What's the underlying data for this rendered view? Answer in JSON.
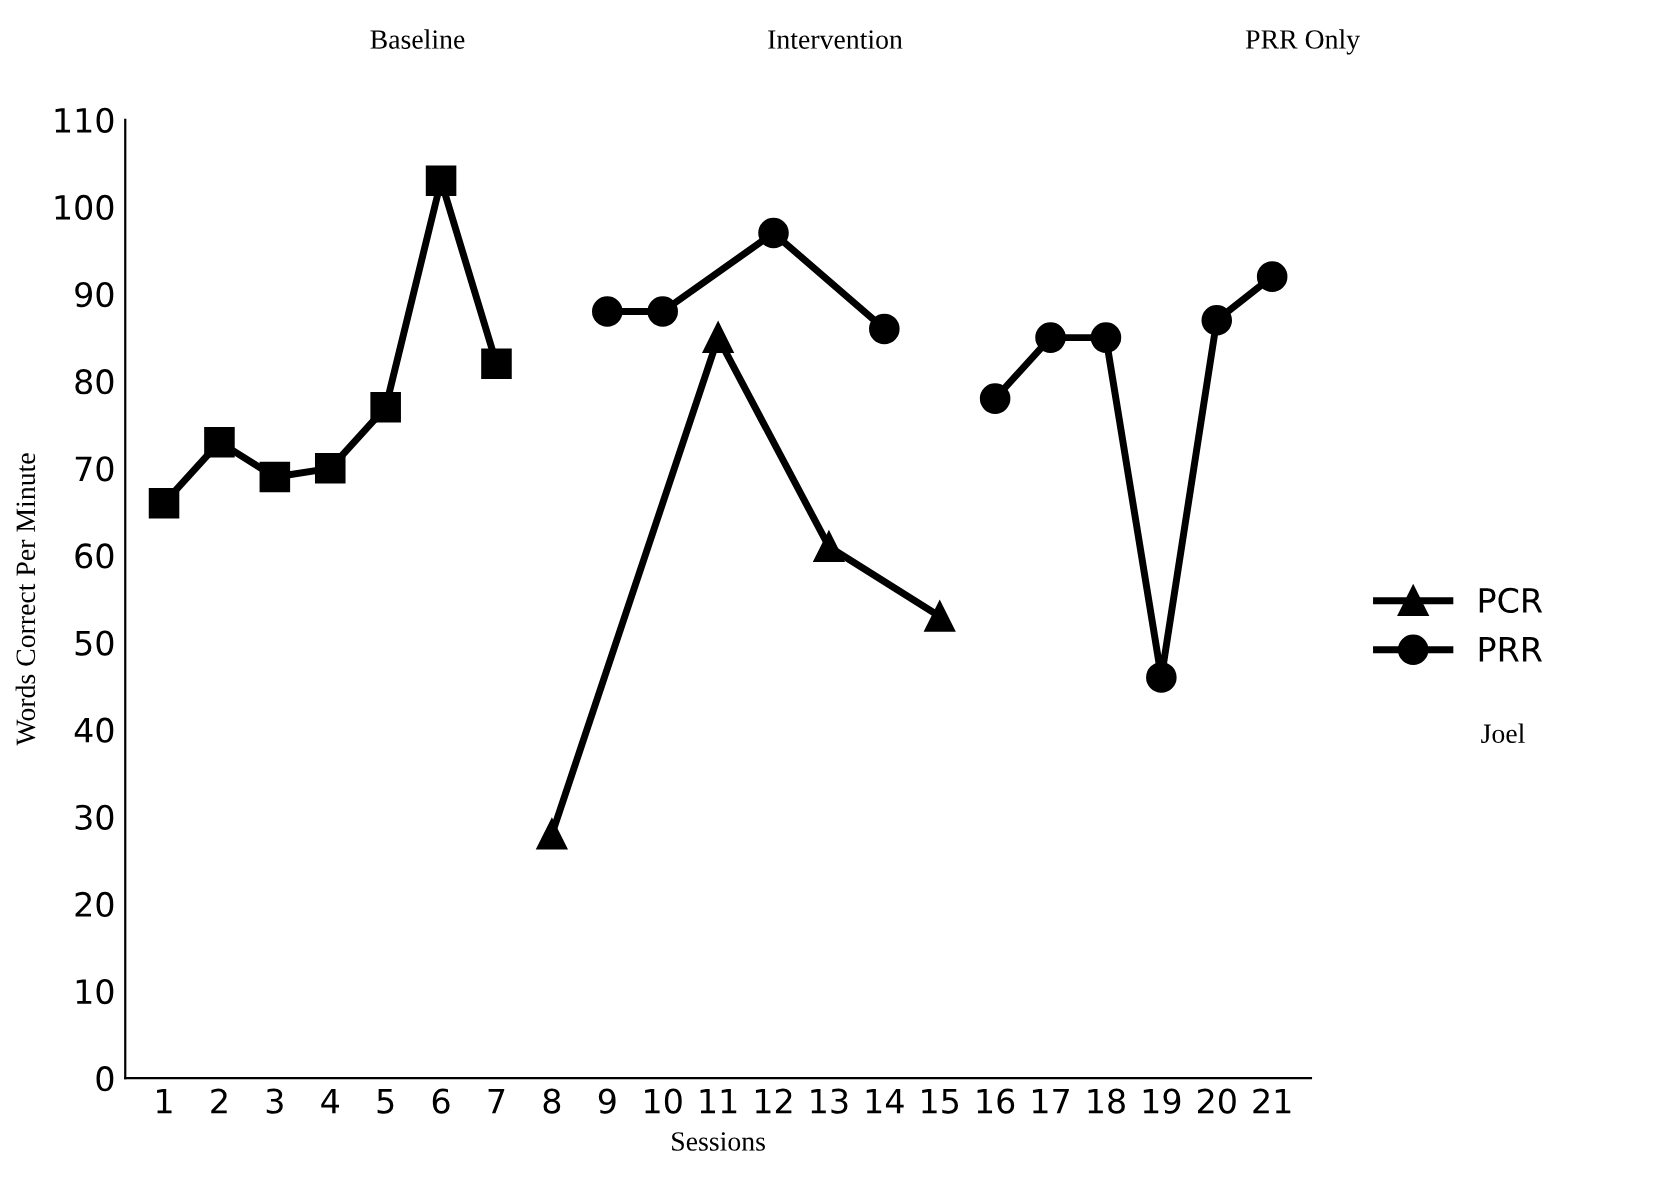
{
  "chart_data": {
    "type": "line",
    "xlabel": "Sessions",
    "ylabel": "Words Correct Per Minute",
    "categories": [
      "1",
      "2",
      "3",
      "4",
      "5",
      "6",
      "7",
      "8",
      "9",
      "10",
      "11",
      "12",
      "13",
      "14",
      "15",
      "16",
      "17",
      "18",
      "19",
      "20",
      "21"
    ],
    "series": [
      {
        "x": [
          "1",
          "2",
          "3",
          "4",
          "5",
          "6",
          "7"
        ],
        "values": [
          66,
          73,
          69,
          70,
          77,
          103,
          82
        ],
        "color": "#000000",
        "marker": "square"
      },
      {
        "name": "PCR",
        "x": [
          "8",
          "11",
          "13",
          "15"
        ],
        "values": [
          28,
          85,
          61,
          53
        ],
        "color": "#000000",
        "marker": "triangle"
      },
      {
        "name": "PRR",
        "x": [
          "9",
          "10",
          "12",
          "14",
          "15",
          "16",
          "17",
          "18",
          "19",
          "20",
          "21"
        ],
        "values": [
          88,
          88,
          97,
          86,
          null,
          78,
          85,
          85,
          46,
          87,
          92
        ],
        "color": "#000000",
        "marker": "circle"
      }
    ],
    "annotations": [
      "Baseline",
      "Intervention",
      "PRR Only",
      "Joel"
    ],
    "ylim": [
      0,
      110
    ],
    "yticks": [
      0,
      10,
      20,
      30,
      40,
      50,
      60,
      70,
      80,
      90,
      100,
      110
    ],
    "grid": false,
    "legend": "right",
    "line_style": "solid"
  }
}
